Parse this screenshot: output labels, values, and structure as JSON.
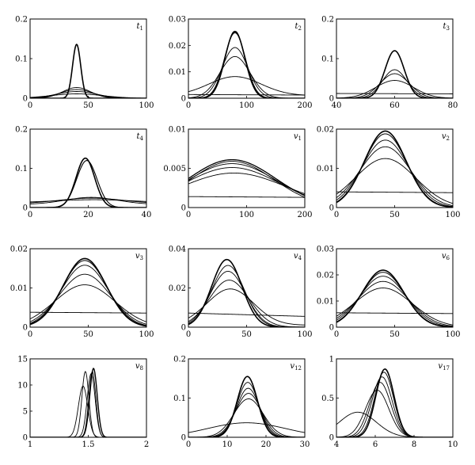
{
  "chart_data": [
    {
      "type": "line",
      "label": "t",
      "sub": "1",
      "xlim": [
        0,
        100
      ],
      "ylim": [
        0,
        0.2
      ],
      "xticks": [
        "0",
        "50",
        "100"
      ],
      "yticks": [
        "0",
        "0.1",
        "0.2"
      ],
      "series": [
        {
          "kind": "gauss",
          "mu": 40,
          "sigma": 3.5,
          "amp": 0.136,
          "base": 0,
          "width": 1.6
        },
        {
          "kind": "gauss",
          "mu": 40,
          "sigma": 12,
          "amp": 0.027,
          "base": 0,
          "width": 0.9
        },
        {
          "kind": "gauss",
          "mu": 40,
          "sigma": 14,
          "amp": 0.022,
          "base": 0,
          "width": 0.9
        },
        {
          "kind": "gauss",
          "mu": 40,
          "sigma": 17,
          "amp": 0.017,
          "base": 0,
          "width": 0.9
        },
        {
          "kind": "gauss",
          "mu": 40,
          "sigma": 22,
          "amp": 0.011,
          "base": 0,
          "width": 0.9
        }
      ]
    },
    {
      "type": "line",
      "label": "t",
      "sub": "2",
      "xlim": [
        0,
        200
      ],
      "ylim": [
        0,
        0.03
      ],
      "xticks": [
        "0",
        "100",
        "200"
      ],
      "yticks": [
        "0",
        "0.01",
        "0.02",
        "0.03"
      ],
      "series": [
        {
          "kind": "gauss",
          "mu": 80,
          "sigma": 17,
          "amp": 0.0253,
          "base": 0,
          "width": 1.6
        },
        {
          "kind": "gauss",
          "mu": 80,
          "sigma": 18,
          "amp": 0.0248,
          "base": 0,
          "width": 1.1
        },
        {
          "kind": "gauss",
          "mu": 80,
          "sigma": 22,
          "amp": 0.0192,
          "base": 0,
          "width": 0.9
        },
        {
          "kind": "gauss",
          "mu": 80,
          "sigma": 26,
          "amp": 0.0158,
          "base": 0,
          "width": 0.9
        },
        {
          "kind": "gauss",
          "mu": 80,
          "sigma": 45,
          "amp": 0.0072,
          "base": 0.001,
          "width": 0.9
        },
        {
          "kind": "flat",
          "y0": 0.0014,
          "y1": 0.0012,
          "width": 0.9
        }
      ]
    },
    {
      "type": "line",
      "label": "t",
      "sub": "3",
      "xlim": [
        40,
        80
      ],
      "ylim": [
        0,
        0.2
      ],
      "xticks": [
        "40",
        "60",
        "80"
      ],
      "yticks": [
        "0",
        "0.1",
        "0.2"
      ],
      "series": [
        {
          "kind": "gauss",
          "mu": 60,
          "sigma": 3.3,
          "amp": 0.12,
          "base": 0,
          "width": 1.6
        },
        {
          "kind": "gauss",
          "mu": 60,
          "sigma": 4.2,
          "amp": 0.072,
          "base": 0,
          "width": 0.9
        },
        {
          "kind": "gauss",
          "mu": 60,
          "sigma": 5,
          "amp": 0.062,
          "base": 0,
          "width": 0.9
        },
        {
          "kind": "gauss",
          "mu": 60,
          "sigma": 6.5,
          "amp": 0.045,
          "base": 0,
          "width": 0.9
        },
        {
          "kind": "flat",
          "y0": 0.012,
          "y1": 0.011,
          "width": 0.9
        }
      ]
    },
    {
      "type": "line",
      "label": "t",
      "sub": "4",
      "xlim": [
        0,
        40
      ],
      "ylim": [
        0,
        0.2
      ],
      "xticks": [
        "0",
        "20",
        "40"
      ],
      "yticks": [
        "0",
        "0.1",
        "0.2"
      ],
      "series": [
        {
          "kind": "gauss",
          "mu": 19,
          "sigma": 3.2,
          "amp": 0.126,
          "base": 0,
          "width": 1.6
        },
        {
          "kind": "gauss",
          "mu": 19.5,
          "sigma": 3.5,
          "amp": 0.12,
          "base": 0,
          "width": 1.1
        },
        {
          "kind": "gauss",
          "mu": 21,
          "sigma": 9,
          "amp": 0.018,
          "base": 0.008,
          "width": 0.9
        },
        {
          "kind": "gauss",
          "mu": 21,
          "sigma": 11,
          "amp": 0.014,
          "base": 0.01,
          "width": 0.9
        },
        {
          "kind": "gauss",
          "mu": 22,
          "sigma": 14,
          "amp": 0.008,
          "base": 0.012,
          "width": 0.9
        }
      ]
    },
    {
      "type": "line",
      "label": "v",
      "sub": "1",
      "xlim": [
        0,
        200
      ],
      "ylim": [
        0,
        0.01
      ],
      "xticks": [
        "0",
        "100",
        "200"
      ],
      "yticks": [
        "0",
        "0.005",
        "0.01"
      ],
      "series": [
        {
          "kind": "gauss",
          "mu": 75,
          "sigma": 75,
          "amp": 0.0061,
          "base": 0,
          "width": 1.3
        },
        {
          "kind": "gauss",
          "mu": 75,
          "sigma": 72,
          "amp": 0.0059,
          "base": 0,
          "width": 0.9
        },
        {
          "kind": "gauss",
          "mu": 75,
          "sigma": 78,
          "amp": 0.0056,
          "base": 0,
          "width": 0.9
        },
        {
          "kind": "gauss",
          "mu": 75,
          "sigma": 82,
          "amp": 0.0051,
          "base": 0,
          "width": 0.9
        },
        {
          "kind": "gauss",
          "mu": 78,
          "sigma": 90,
          "amp": 0.0044,
          "base": 0,
          "width": 0.9
        },
        {
          "kind": "flat",
          "y0": 0.0014,
          "y1": 0.0013,
          "width": 0.9
        }
      ]
    },
    {
      "type": "line",
      "label": "v",
      "sub": "2",
      "xlim": [
        0,
        100
      ],
      "ylim": [
        0,
        0.02
      ],
      "xticks": [
        "0",
        "50",
        "100"
      ],
      "yticks": [
        "0",
        "0.01",
        "0.02"
      ],
      "series": [
        {
          "kind": "gauss",
          "mu": 42,
          "sigma": 18,
          "amp": 0.0195,
          "base": 0,
          "width": 1.6
        },
        {
          "kind": "gauss",
          "mu": 42,
          "sigma": 18.5,
          "amp": 0.0188,
          "base": 0,
          "width": 1.0
        },
        {
          "kind": "gauss",
          "mu": 42,
          "sigma": 20,
          "amp": 0.0172,
          "base": 0,
          "width": 0.9
        },
        {
          "kind": "gauss",
          "mu": 42,
          "sigma": 22,
          "amp": 0.0155,
          "base": 0,
          "width": 0.9
        },
        {
          "kind": "gauss",
          "mu": 42,
          "sigma": 26,
          "amp": 0.0125,
          "base": 0,
          "width": 0.9
        },
        {
          "kind": "flat",
          "y0": 0.004,
          "y1": 0.0038,
          "width": 0.9
        }
      ]
    },
    {
      "type": "line",
      "label": "v",
      "sub": "3",
      "xlim": [
        0,
        100
      ],
      "ylim": [
        0,
        0.02
      ],
      "xticks": [
        "0",
        "50",
        "100"
      ],
      "yticks": [
        "0",
        "0.01",
        "0.02"
      ],
      "series": [
        {
          "kind": "gauss",
          "mu": 47,
          "sigma": 18.5,
          "amp": 0.0175,
          "base": 0,
          "width": 1.6
        },
        {
          "kind": "gauss",
          "mu": 47,
          "sigma": 19,
          "amp": 0.017,
          "base": 0,
          "width": 1.0
        },
        {
          "kind": "gauss",
          "mu": 47,
          "sigma": 20,
          "amp": 0.0158,
          "base": 0,
          "width": 0.9
        },
        {
          "kind": "gauss",
          "mu": 47,
          "sigma": 22,
          "amp": 0.0135,
          "base": 0,
          "width": 0.9
        },
        {
          "kind": "gauss",
          "mu": 47,
          "sigma": 26,
          "amp": 0.0108,
          "base": 0,
          "width": 0.9
        },
        {
          "kind": "flat",
          "y0": 0.0038,
          "y1": 0.0036,
          "width": 0.9
        }
      ]
    },
    {
      "type": "line",
      "label": "v",
      "sub": "4",
      "xlim": [
        0,
        100
      ],
      "ylim": [
        0,
        0.04
      ],
      "xticks": [
        "0",
        "50",
        "100"
      ],
      "yticks": [
        "0",
        "0.02",
        "0.04"
      ],
      "series": [
        {
          "kind": "gauss",
          "mu": 33,
          "sigma": 13,
          "amp": 0.0345,
          "base": 0,
          "width": 1.6
        },
        {
          "kind": "gauss",
          "mu": 34,
          "sigma": 14,
          "amp": 0.0315,
          "base": 0,
          "width": 0.9
        },
        {
          "kind": "gauss",
          "mu": 34,
          "sigma": 15,
          "amp": 0.0285,
          "base": 0,
          "width": 0.9
        },
        {
          "kind": "gauss",
          "mu": 35,
          "sigma": 17,
          "amp": 0.024,
          "base": 0,
          "width": 0.9
        },
        {
          "kind": "gauss",
          "mu": 36,
          "sigma": 20,
          "amp": 0.0185,
          "base": 0.001,
          "width": 0.9
        },
        {
          "kind": "flat",
          "y0": 0.0072,
          "y1": 0.0055,
          "width": 0.9
        }
      ]
    },
    {
      "type": "line",
      "label": "v",
      "sub": "6",
      "xlim": [
        0,
        100
      ],
      "ylim": [
        0,
        0.03
      ],
      "xticks": [
        "0",
        "50",
        "100"
      ],
      "yticks": [
        "0",
        "0.01",
        "0.02",
        "0.03"
      ],
      "series": [
        {
          "kind": "gauss",
          "mu": 40,
          "sigma": 18,
          "amp": 0.0218,
          "base": 0,
          "width": 1.6
        },
        {
          "kind": "gauss",
          "mu": 40,
          "sigma": 18.5,
          "amp": 0.021,
          "base": 0,
          "width": 1.0
        },
        {
          "kind": "gauss",
          "mu": 40,
          "sigma": 20,
          "amp": 0.0195,
          "base": 0,
          "width": 0.9
        },
        {
          "kind": "gauss",
          "mu": 40,
          "sigma": 22,
          "amp": 0.0175,
          "base": 0,
          "width": 0.9
        },
        {
          "kind": "gauss",
          "mu": 40,
          "sigma": 25,
          "amp": 0.015,
          "base": 0,
          "width": 0.9
        },
        {
          "kind": "flat",
          "y0": 0.0055,
          "y1": 0.0052,
          "width": 0.9
        }
      ]
    },
    {
      "type": "line",
      "label": "v",
      "sub": "8",
      "xlim": [
        1,
        2
      ],
      "ylim": [
        0,
        15
      ],
      "xticks": [
        "1",
        "1.5",
        "2"
      ],
      "yticks": [
        "0",
        "5",
        "10",
        "15"
      ],
      "series": [
        {
          "kind": "gauss",
          "mu": 1.545,
          "sigma": 0.032,
          "amp": 13.2,
          "base": 0,
          "width": 1.4
        },
        {
          "kind": "gauss",
          "mu": 1.535,
          "sigma": 0.03,
          "amp": 12.6,
          "base": 0,
          "width": 0.9
        },
        {
          "kind": "gauss",
          "mu": 1.525,
          "sigma": 0.034,
          "amp": 12.2,
          "base": 0,
          "width": 0.9
        },
        {
          "kind": "gauss",
          "mu": 1.475,
          "sigma": 0.03,
          "amp": 12.6,
          "base": 0,
          "width": 0.9
        },
        {
          "kind": "gauss",
          "mu": 1.455,
          "sigma": 0.04,
          "amp": 9.8,
          "base": 0,
          "width": 0.9
        }
      ]
    },
    {
      "type": "line",
      "label": "v",
      "sub": "12",
      "xlim": [
        0,
        30
      ],
      "ylim": [
        0,
        0.2
      ],
      "xticks": [
        "0",
        "10",
        "20",
        "30"
      ],
      "yticks": [
        "0",
        "0.1",
        "0.2"
      ],
      "series": [
        {
          "kind": "gauss",
          "mu": 15.2,
          "sigma": 2.6,
          "amp": 0.155,
          "base": 0,
          "width": 1.6
        },
        {
          "kind": "gauss",
          "mu": 15.3,
          "sigma": 2.8,
          "amp": 0.14,
          "base": 0,
          "width": 0.9
        },
        {
          "kind": "gauss",
          "mu": 15.4,
          "sigma": 3.0,
          "amp": 0.125,
          "base": 0,
          "width": 0.9
        },
        {
          "kind": "gauss",
          "mu": 15.5,
          "sigma": 3.3,
          "amp": 0.112,
          "base": 0,
          "width": 0.9
        },
        {
          "kind": "gauss",
          "mu": 15.5,
          "sigma": 3.8,
          "amp": 0.098,
          "base": 0,
          "width": 0.9
        },
        {
          "kind": "gauss",
          "mu": 15,
          "sigma": 10,
          "amp": 0.037,
          "base": 0,
          "width": 0.9
        }
      ]
    },
    {
      "type": "line",
      "label": "v",
      "sub": "17",
      "xlim": [
        4,
        10
      ],
      "ylim": [
        0,
        1
      ],
      "xticks": [
        "4",
        "6",
        "8",
        "10"
      ],
      "yticks": [
        "0",
        "0.5",
        "1"
      ],
      "series": [
        {
          "kind": "gauss",
          "mu": 6.5,
          "sigma": 0.47,
          "amp": 0.87,
          "base": 0,
          "width": 1.6
        },
        {
          "kind": "gauss",
          "mu": 6.45,
          "sigma": 0.49,
          "amp": 0.83,
          "base": 0,
          "width": 0.9
        },
        {
          "kind": "gauss",
          "mu": 6.35,
          "sigma": 0.52,
          "amp": 0.77,
          "base": 0,
          "width": 0.9
        },
        {
          "kind": "gauss",
          "mu": 6.25,
          "sigma": 0.55,
          "amp": 0.7,
          "base": 0,
          "width": 0.9
        },
        {
          "kind": "gauss",
          "mu": 6.1,
          "sigma": 0.6,
          "amp": 0.6,
          "base": 0,
          "width": 0.9
        },
        {
          "kind": "gauss",
          "mu": 5.1,
          "sigma": 0.95,
          "amp": 0.32,
          "base": 0,
          "width": 0.9
        }
      ]
    }
  ]
}
